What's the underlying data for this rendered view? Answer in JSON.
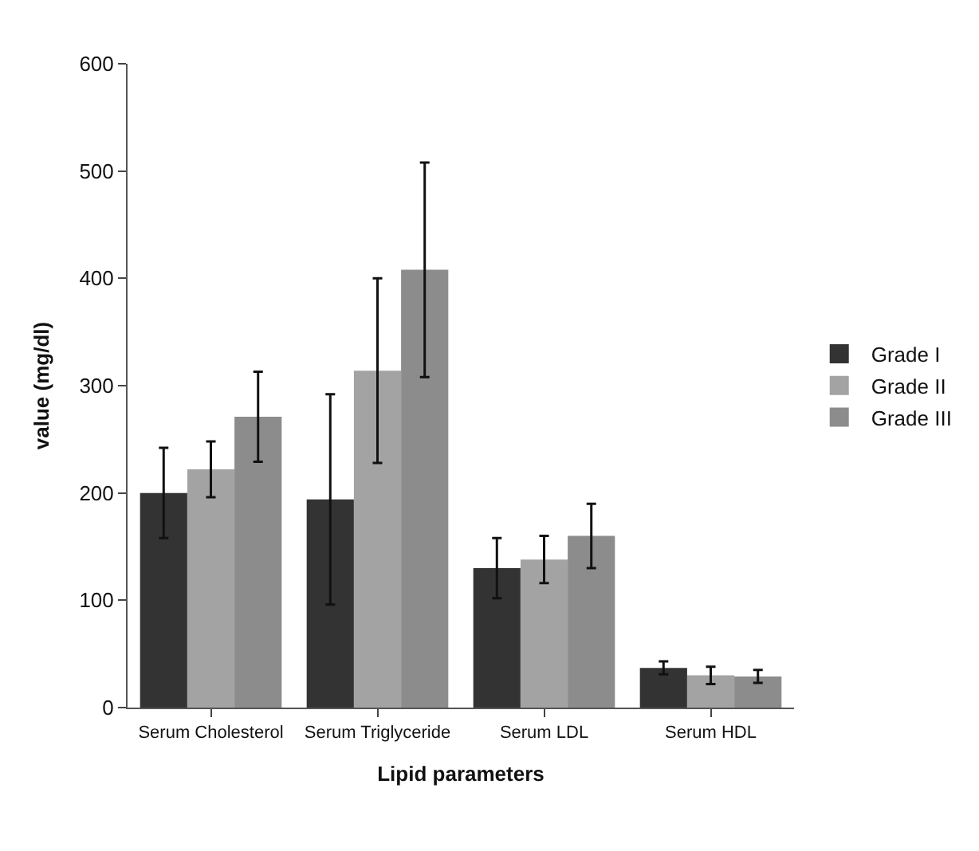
{
  "chart_data": {
    "type": "bar",
    "xlabel": "Lipid parameters",
    "ylabel": "value (mg/dl)",
    "categories": [
      "Serum Cholesterol",
      "Serum Triglyceride",
      "Serum LDL",
      "Serum HDL"
    ],
    "series": [
      {
        "name": "Grade I",
        "color": "#333333",
        "values": [
          200,
          194,
          130,
          37
        ],
        "errors": [
          42,
          98,
          28,
          6
        ]
      },
      {
        "name": "Grade II",
        "color": "#a3a3a3",
        "values": [
          222,
          314,
          138,
          30
        ],
        "errors": [
          26,
          86,
          22,
          8
        ]
      },
      {
        "name": "Grade III",
        "color": "#8c8c8c",
        "values": [
          271,
          408,
          160,
          29
        ],
        "errors": [
          42,
          100,
          30,
          6
        ]
      }
    ],
    "ylim": [
      0,
      600
    ],
    "yticks": [
      0,
      100,
      200,
      300,
      400,
      500,
      600
    ],
    "legend": "right"
  }
}
